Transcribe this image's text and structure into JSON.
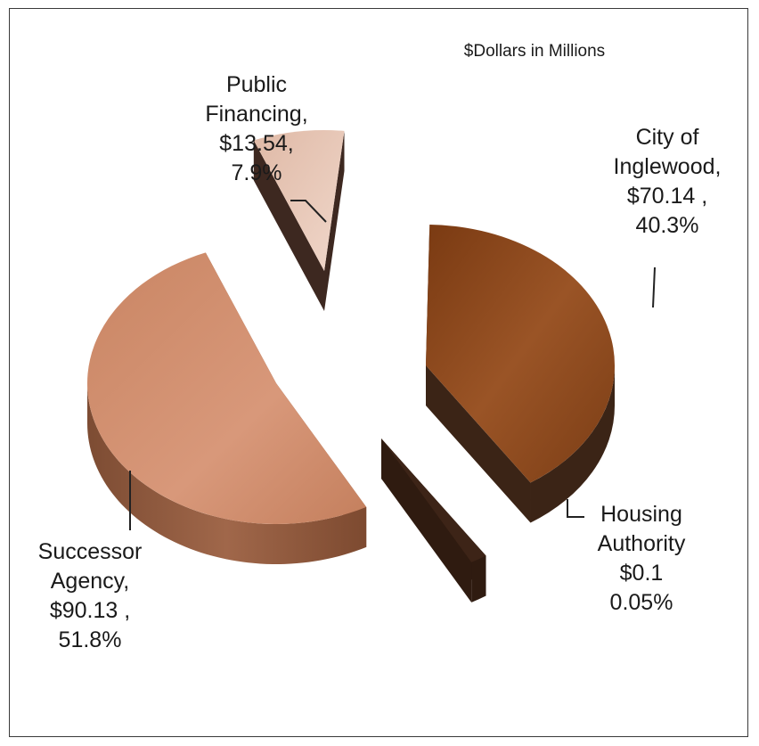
{
  "chart_data": {
    "type": "pie",
    "title": "$Dollars in Millions",
    "slices": [
      {
        "label_lines": [
          "City of",
          "Inglewood,",
          "$70.14 ,",
          "40.3%"
        ],
        "value": 70.14,
        "percent": 40.3,
        "color": "#8e4a1f"
      },
      {
        "label_lines": [
          "Housing",
          "Authority",
          "$0.1",
          "0.05%"
        ],
        "value": 0.1,
        "percent": 0.05,
        "color": "#3d2417"
      },
      {
        "label_lines": [
          "Successor",
          "Agency,",
          "$90.13 ,",
          "51.8%"
        ],
        "value": 90.13,
        "percent": 51.8,
        "color": "#cf8d6c"
      },
      {
        "label_lines": [
          "Public",
          "Financing,",
          "$13.54,",
          "7.9%"
        ],
        "value": 13.54,
        "percent": 7.9,
        "color": "#e7c6b6"
      }
    ]
  }
}
